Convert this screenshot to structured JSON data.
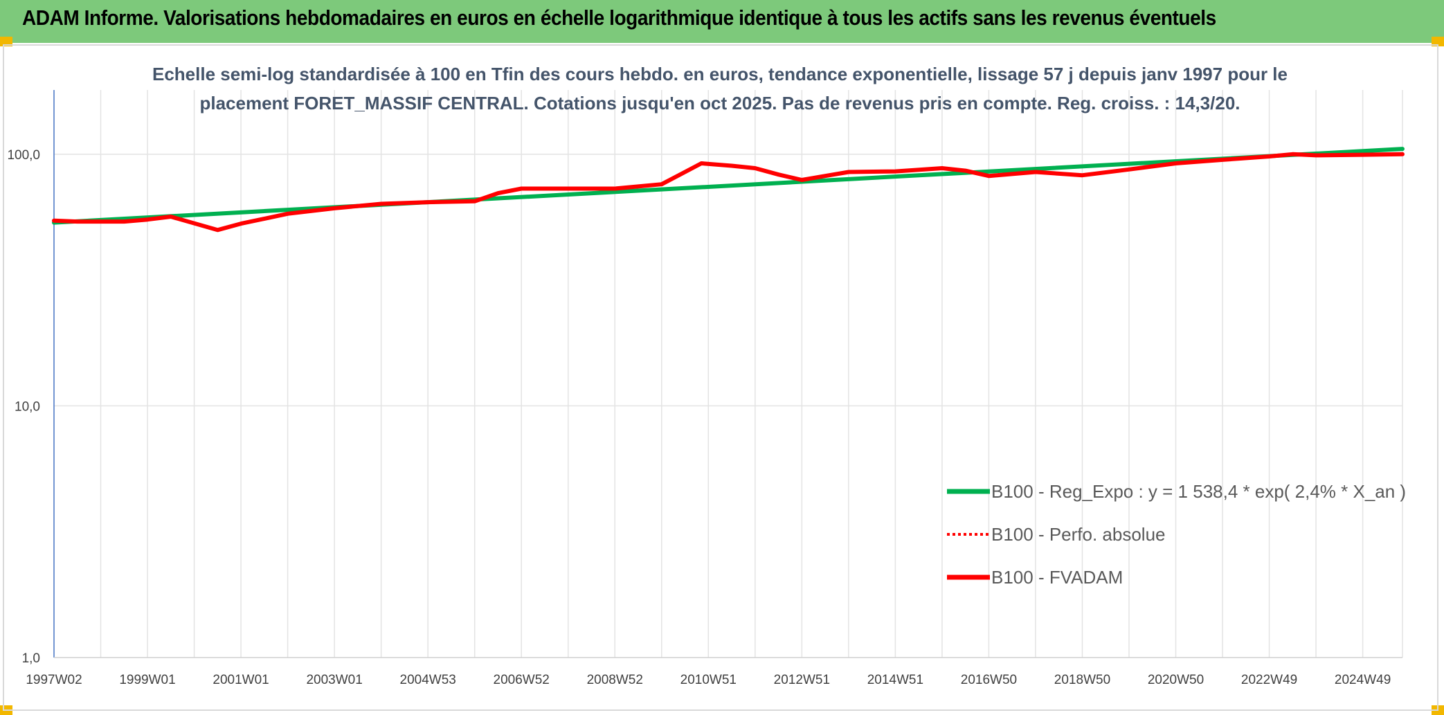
{
  "page": {
    "title": "ADAM Informe. Valorisations hebdomadaires en euros en échelle logarithmique identique à tous les actifs sans les revenus éventuels",
    "header_color": "#7dc97b"
  },
  "chart_data": {
    "type": "line",
    "title_line1": "Echelle semi-log standardisée à 100 en Tfin des cours hebdo. en euros, tendance exponentielle, lissage 57 j depuis janv 1997 pour le",
    "title_line2": "placement FORET_MASSIF CENTRAL. Cotations jusqu'en oct 2025. Pas de revenus pris en compte. Reg. croiss. : 14,3/20.",
    "y_scale": "log",
    "ylim": [
      1,
      180
    ],
    "y_ticks": [
      {
        "value": 1,
        "label": "1,0"
      },
      {
        "value": 10,
        "label": "10,0"
      },
      {
        "value": 100,
        "label": "100,0"
      }
    ],
    "x_range": [
      1997.0,
      2025.85
    ],
    "x_ticks": [
      {
        "pos": 1997.0,
        "label": "1997W02"
      },
      {
        "pos": 1999.0,
        "label": "1999W01"
      },
      {
        "pos": 2001.0,
        "label": "2001W01"
      },
      {
        "pos": 2003.0,
        "label": "2003W01"
      },
      {
        "pos": 2005.0,
        "label": "2004W53"
      },
      {
        "pos": 2007.0,
        "label": "2006W52"
      },
      {
        "pos": 2009.0,
        "label": "2008W52"
      },
      {
        "pos": 2011.0,
        "label": "2010W51"
      },
      {
        "pos": 2013.0,
        "label": "2012W51"
      },
      {
        "pos": 2015.0,
        "label": "2014W51"
      },
      {
        "pos": 2017.0,
        "label": "2016W50"
      },
      {
        "pos": 2019.0,
        "label": "2018W50"
      },
      {
        "pos": 2021.0,
        "label": "2020W50"
      },
      {
        "pos": 2023.0,
        "label": "2022W49"
      },
      {
        "pos": 2025.0,
        "label": "2024W49"
      }
    ],
    "x_minor_ticks": [
      1998,
      2000,
      2002,
      2004,
      2006,
      2008,
      2010,
      2012,
      2014,
      2016,
      2018,
      2020,
      2022,
      2024
    ],
    "legend_position": "right",
    "series": [
      {
        "name": "B100 - Reg_Expo : y = 1 538,4 * exp( 2,4% *  X_an )",
        "color": "#00b050",
        "style": "solid",
        "points": [
          [
            1997.0,
            53.5
          ],
          [
            2025.85,
            105.0
          ]
        ]
      },
      {
        "name": "B100 - Perfo. absolue",
        "color": "#ff0000",
        "style": "dotted",
        "points": []
      },
      {
        "name": "B100 - FVADAM",
        "color": "#ff0000",
        "style": "solid",
        "points": [
          [
            1997.0,
            54.5
          ],
          [
            1997.5,
            54.0
          ],
          [
            1998.5,
            54.0
          ],
          [
            1999.0,
            55.0
          ],
          [
            1999.5,
            56.5
          ],
          [
            2000.5,
            50.0
          ],
          [
            2001.0,
            53.0
          ],
          [
            2002.0,
            58.0
          ],
          [
            2003.0,
            61.0
          ],
          [
            2004.0,
            63.5
          ],
          [
            2005.0,
            64.5
          ],
          [
            2006.0,
            65.0
          ],
          [
            2006.5,
            70.0
          ],
          [
            2007.0,
            73.0
          ],
          [
            2008.0,
            73.0
          ],
          [
            2009.0,
            73.0
          ],
          [
            2010.0,
            76.0
          ],
          [
            2010.5,
            85.0
          ],
          [
            2010.85,
            92.0
          ],
          [
            2011.5,
            90.0
          ],
          [
            2012.0,
            88.0
          ],
          [
            2012.5,
            83.0
          ],
          [
            2013.0,
            79.0
          ],
          [
            2013.5,
            82.0
          ],
          [
            2014.0,
            85.0
          ],
          [
            2015.0,
            85.5
          ],
          [
            2016.0,
            88.0
          ],
          [
            2016.5,
            86.0
          ],
          [
            2017.0,
            82.0
          ],
          [
            2018.0,
            85.0
          ],
          [
            2019.0,
            82.5
          ],
          [
            2020.0,
            87.0
          ],
          [
            2021.0,
            92.0
          ],
          [
            2022.0,
            95.0
          ],
          [
            2023.0,
            98.0
          ],
          [
            2023.5,
            100.0
          ],
          [
            2024.0,
            99.0
          ],
          [
            2025.0,
            99.5
          ],
          [
            2025.85,
            100.0
          ]
        ]
      }
    ]
  }
}
